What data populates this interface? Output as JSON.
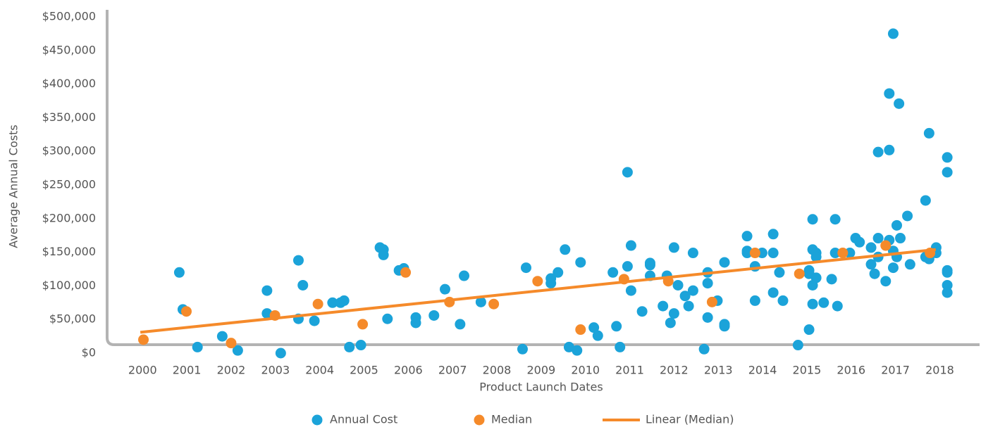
{
  "chart_data": {
    "type": "scatter",
    "xlabel": "Product Launch Dates",
    "ylabel": "Average Annual Costs",
    "xlim": [
      1999.2,
      2018.9
    ],
    "xticks": [
      2000,
      2001,
      2002,
      2003,
      2004,
      2005,
      2006,
      2007,
      2008,
      2009,
      2010,
      2011,
      2012,
      2013,
      2014,
      2015,
      2016,
      2017,
      2018
    ],
    "ylim": [
      0,
      500000
    ],
    "yticks": [
      {
        "value": 0,
        "label": "$0"
      },
      {
        "value": 50000,
        "label": "$50,000"
      },
      {
        "value": 100000,
        "label": "$100,000"
      },
      {
        "value": 150000,
        "label": "$150,000"
      },
      {
        "value": 200000,
        "label": "$200,000"
      },
      {
        "value": 250000,
        "label": "$250,000"
      },
      {
        "value": 300000,
        "label": "$300,000"
      },
      {
        "value": 350000,
        "label": "$350,000"
      },
      {
        "value": 400000,
        "label": "$400,000"
      },
      {
        "value": 450000,
        "label": "$450,000"
      },
      {
        "value": 500000,
        "label": "$500,000"
      }
    ],
    "legend": "bottom",
    "series": [
      {
        "name": "Annual Cost",
        "type": "scatter",
        "color": "#1ba3d9",
        "x": [
          2000.83,
          2000.91,
          2001.24,
          2001.8,
          2002.15,
          2002.81,
          2002.81,
          2003.12,
          2003.52,
          2003.52,
          2003.62,
          2003.88,
          2004.29,
          2004.47,
          2004.55,
          2004.67,
          2004.93,
          2005.36,
          2005.44,
          2005.44,
          2005.53,
          2005.79,
          2005.9,
          2006.17,
          2006.17,
          2006.58,
          2006.83,
          2007.17,
          2007.26,
          2007.64,
          2008.58,
          2008.66,
          2009.22,
          2009.22,
          2009.38,
          2009.54,
          2009.63,
          2009.81,
          2009.89,
          2010.19,
          2010.28,
          2010.62,
          2010.7,
          2010.78,
          2010.95,
          2010.95,
          2011.03,
          2011.03,
          2011.28,
          2011.46,
          2011.46,
          2011.46,
          2011.75,
          2011.84,
          2011.92,
          2012.0,
          2012.0,
          2012.09,
          2012.25,
          2012.33,
          2012.43,
          2012.43,
          2012.68,
          2012.76,
          2012.76,
          2012.76,
          2012.98,
          2013.14,
          2013.14,
          2013.14,
          2013.65,
          2013.65,
          2013.65,
          2013.83,
          2013.83,
          2013.99,
          2014.24,
          2014.24,
          2014.24,
          2014.38,
          2014.46,
          2014.8,
          2015.05,
          2015.05,
          2015.05,
          2015.13,
          2015.13,
          2015.13,
          2015.13,
          2015.21,
          2015.21,
          2015.21,
          2015.38,
          2015.56,
          2015.64,
          2015.64,
          2015.69,
          2015.97,
          2016.1,
          2016.19,
          2016.45,
          2016.45,
          2016.53,
          2016.61,
          2016.61,
          2016.61,
          2016.78,
          2016.86,
          2016.86,
          2016.86,
          2016.95,
          2016.95,
          2016.95,
          2017.03,
          2017.03,
          2017.08,
          2017.11,
          2017.27,
          2017.33,
          2017.68,
          2017.68,
          2017.76,
          2017.76,
          2017.92,
          2017.92,
          2018.17,
          2018.17,
          2018.17,
          2018.17,
          2018.17,
          2018.17
        ],
        "values": [
          120000,
          65000,
          9000,
          25000,
          4000,
          93000,
          59000,
          0,
          138000,
          51000,
          101000,
          48000,
          75000,
          75000,
          78000,
          9000,
          12000,
          157000,
          154000,
          146000,
          51000,
          123000,
          126000,
          53000,
          45000,
          56000,
          95000,
          43000,
          115000,
          76000,
          6000,
          127000,
          111000,
          104000,
          120000,
          154000,
          9000,
          4000,
          135000,
          38000,
          26000,
          120000,
          40000,
          9000,
          269000,
          129000,
          160000,
          93000,
          62000,
          134000,
          131000,
          115000,
          70000,
          115000,
          45000,
          157000,
          59000,
          101000,
          85000,
          70000,
          93000,
          149000,
          6000,
          120000,
          104000,
          53000,
          78000,
          135000,
          43000,
          40000,
          174000,
          152000,
          149000,
          129000,
          78000,
          149000,
          177000,
          149000,
          90000,
          120000,
          78000,
          12000,
          35000,
          123000,
          118000,
          199000,
          154000,
          73000,
          101000,
          149000,
          112000,
          143000,
          75000,
          110000,
          199000,
          149000,
          70000,
          149000,
          171000,
          165000,
          157000,
          132000,
          118000,
          299000,
          171000,
          143000,
          107000,
          302000,
          386000,
          168000,
          475000,
          152000,
          127000,
          190000,
          143000,
          371000,
          171000,
          204000,
          132000,
          227000,
          143000,
          327000,
          140000,
          157000,
          149000,
          291000,
          269000,
          123000,
          120000,
          101000,
          90000
        ]
      },
      {
        "name": "Median",
        "type": "scatter",
        "color": "#f58a2a",
        "x": [
          2000.02,
          2000.99,
          2002.0,
          2002.99,
          2003.96,
          2004.97,
          2005.94,
          2006.93,
          2007.93,
          2008.92,
          2009.89,
          2010.87,
          2011.87,
          2012.86,
          2013.83,
          2014.83,
          2015.81,
          2016.78,
          2017.78
        ],
        "values": [
          20000,
          62000,
          15000,
          56000,
          73000,
          43000,
          120000,
          76000,
          73000,
          107000,
          35000,
          110000,
          107000,
          76000,
          149000,
          118000,
          149000,
          160000,
          149000
        ]
      },
      {
        "name": "Linear (Median)",
        "type": "line",
        "color": "#f58a2a",
        "x": [
          1999.95,
          2017.91
        ],
        "values": [
          31000,
          154000
        ]
      }
    ]
  }
}
